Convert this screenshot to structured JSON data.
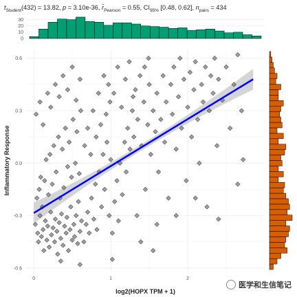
{
  "subtitle": {
    "t_symbol": "t",
    "t_sub": "Student",
    "t_df_value": "(432) = 13.82,",
    "p_symbol": "p",
    "p_value": " = 3.10e-36,",
    "r_symbol": "r̂",
    "r_sub": "Pearson",
    "r_value": " = 0.55, CI",
    "ci_sub": "95%",
    "ci_value": " [0.48, 0.62],",
    "n_symbol": "n",
    "n_sub": "pairs",
    "n_value": " = 434"
  },
  "watermark": {
    "text": "医学和生信笔记"
  },
  "chart_data": {
    "type": "scatter",
    "xlabel": "log2(HOPX TPM + 1)",
    "ylabel": "Inflammatory Response",
    "xlim": [
      -0.1,
      3.0
    ],
    "ylim": [
      -0.62,
      0.65
    ],
    "x_ticks": [
      0,
      1,
      2
    ],
    "x_tick_labels": [
      "0",
      "1",
      "2"
    ],
    "y_ticks": [
      -0.6,
      -0.3,
      0.0,
      0.3,
      0.6
    ],
    "y_tick_labels": [
      "-0.6",
      "-0.3",
      "0.0",
      "0.3",
      "0.6"
    ],
    "grid": true,
    "colors": {
      "points_fill": "#7f7f7f",
      "points_edge": "#000000",
      "fit_line": "#0000ff",
      "ci_band": "#bfbfbf",
      "top_hist": "#009e73",
      "right_hist": "#d55e00"
    },
    "regression": {
      "x": [
        0.0,
        2.85
      ],
      "y": [
        -0.285,
        0.48
      ],
      "ci_halfwidth_ends": 0.06,
      "ci_halfwidth_mid": 0.018
    },
    "top_hist": {
      "yticks": [
        0,
        10,
        20,
        30
      ],
      "ytick_labels": [
        "0",
        "10",
        "20",
        "30"
      ],
      "ylim": [
        0,
        35
      ],
      "counts": [
        3,
        15,
        26,
        31,
        30,
        34,
        27,
        26,
        21,
        25,
        25,
        23,
        20,
        19,
        18,
        16,
        17,
        13,
        14,
        15,
        12,
        9,
        10,
        6,
        4
      ]
    },
    "right_hist": {
      "counts": [
        3,
        6,
        9,
        14,
        12,
        13,
        15,
        16,
        13,
        18,
        14,
        16,
        15,
        13,
        11,
        12,
        7,
        11,
        7,
        10,
        9,
        12,
        13,
        7,
        11,
        6,
        10,
        9,
        8,
        9,
        11,
        7,
        7,
        9,
        5,
        6,
        4,
        3,
        2,
        1
      ]
    },
    "points": [
      [
        0.02,
        -0.35
      ],
      [
        0.05,
        -0.4
      ],
      [
        0.06,
        -0.45
      ],
      [
        0.08,
        -0.3
      ],
      [
        0.1,
        -0.42
      ],
      [
        0.12,
        -0.38
      ],
      [
        0.13,
        -0.5
      ],
      [
        0.15,
        -0.33
      ],
      [
        0.17,
        -0.44
      ],
      [
        0.18,
        -0.36
      ],
      [
        0.2,
        -0.48
      ],
      [
        0.22,
        -0.28
      ],
      [
        0.23,
        -0.41
      ],
      [
        0.25,
        -0.37
      ],
      [
        0.27,
        -0.45
      ],
      [
        0.28,
        -0.32
      ],
      [
        0.3,
        -0.39
      ],
      [
        0.31,
        -0.52
      ],
      [
        0.33,
        -0.34
      ],
      [
        0.35,
        -0.43
      ],
      [
        0.36,
        -0.29
      ],
      [
        0.38,
        -0.47
      ],
      [
        0.4,
        -0.36
      ],
      [
        0.42,
        -0.4
      ],
      [
        0.43,
        -0.31
      ],
      [
        0.45,
        -0.5
      ],
      [
        0.47,
        -0.38
      ],
      [
        0.48,
        -0.25
      ],
      [
        0.5,
        -0.44
      ],
      [
        0.52,
        -0.35
      ],
      [
        0.53,
        -0.42
      ],
      [
        0.55,
        -0.3
      ],
      [
        0.57,
        -0.46
      ],
      [
        0.58,
        -0.22
      ],
      [
        0.6,
        -0.39
      ],
      [
        0.62,
        -0.33
      ],
      [
        0.04,
        -0.2
      ],
      [
        0.07,
        -0.15
      ],
      [
        0.09,
        -0.08
      ],
      [
        0.11,
        -0.25
      ],
      [
        0.14,
        -0.1
      ],
      [
        0.16,
        0.02
      ],
      [
        0.19,
        -0.18
      ],
      [
        0.21,
        0.05
      ],
      [
        0.24,
        -0.12
      ],
      [
        0.26,
        0.1
      ],
      [
        0.29,
        -0.05
      ],
      [
        0.32,
        0.15
      ],
      [
        0.34,
        -0.2
      ],
      [
        0.37,
        0.08
      ],
      [
        0.39,
        -0.14
      ],
      [
        0.41,
        0.2
      ],
      [
        0.44,
        -0.02
      ],
      [
        0.46,
        0.12
      ],
      [
        0.49,
        -0.08
      ],
      [
        0.51,
        0.25
      ],
      [
        0.54,
        0.0
      ],
      [
        0.56,
        0.18
      ],
      [
        0.59,
        -0.06
      ],
      [
        0.61,
        0.3
      ],
      [
        0.03,
        0.28
      ],
      [
        0.08,
        0.35
      ],
      [
        0.12,
        0.22
      ],
      [
        0.18,
        0.4
      ],
      [
        0.22,
        0.32
      ],
      [
        0.28,
        0.45
      ],
      [
        0.33,
        0.38
      ],
      [
        0.38,
        0.5
      ],
      [
        0.44,
        0.42
      ],
      [
        0.5,
        0.55
      ],
      [
        0.55,
        0.36
      ],
      [
        0.6,
        0.48
      ],
      [
        0.65,
        -0.45
      ],
      [
        0.68,
        -0.35
      ],
      [
        0.7,
        -0.28
      ],
      [
        0.72,
        -0.4
      ],
      [
        0.75,
        -0.2
      ],
      [
        0.78,
        -0.32
      ],
      [
        0.8,
        -0.12
      ],
      [
        0.82,
        -0.38
      ],
      [
        0.85,
        -0.05
      ],
      [
        0.88,
        -0.25
      ],
      [
        0.9,
        0.05
      ],
      [
        0.92,
        -0.15
      ],
      [
        0.95,
        0.12
      ],
      [
        0.98,
        -0.3
      ],
      [
        1.0,
        0.02
      ],
      [
        0.66,
        0.1
      ],
      [
        0.7,
        0.2
      ],
      [
        0.74,
        0.05
      ],
      [
        0.77,
        0.3
      ],
      [
        0.81,
        0.15
      ],
      [
        0.84,
        0.4
      ],
      [
        0.87,
        0.22
      ],
      [
        0.91,
        0.5
      ],
      [
        0.94,
        0.28
      ],
      [
        0.97,
        0.45
      ],
      [
        0.99,
        0.35
      ],
      [
        1.02,
        -0.4
      ],
      [
        1.05,
        -0.22
      ],
      [
        1.08,
        -0.1
      ],
      [
        1.1,
        -0.33
      ],
      [
        1.12,
        0.0
      ],
      [
        1.15,
        -0.18
      ],
      [
        1.18,
        0.12
      ],
      [
        1.2,
        -0.05
      ],
      [
        1.22,
        0.2
      ],
      [
        1.25,
        0.08
      ],
      [
        1.28,
        0.3
      ],
      [
        1.3,
        0.15
      ],
      [
        1.32,
        0.42
      ],
      [
        1.35,
        0.25
      ],
      [
        1.38,
        0.5
      ],
      [
        1.4,
        0.1
      ],
      [
        1.43,
        0.35
      ],
      [
        1.45,
        -0.15
      ],
      [
        1.48,
        0.22
      ],
      [
        1.5,
        0.45
      ],
      [
        1.04,
        0.4
      ],
      [
        1.09,
        0.55
      ],
      [
        1.14,
        0.32
      ],
      [
        1.19,
        0.48
      ],
      [
        1.24,
        0.58
      ],
      [
        1.29,
        0.38
      ],
      [
        1.34,
        -0.3
      ],
      [
        1.39,
        -0.45
      ],
      [
        1.44,
        0.55
      ],
      [
        1.49,
        0.6
      ],
      [
        1.52,
        0.05
      ],
      [
        1.55,
        0.3
      ],
      [
        1.58,
        0.18
      ],
      [
        1.6,
        0.4
      ],
      [
        1.62,
        -0.05
      ],
      [
        1.65,
        0.25
      ],
      [
        1.68,
        0.5
      ],
      [
        1.7,
        0.12
      ],
      [
        1.72,
        0.35
      ],
      [
        1.75,
        -0.2
      ],
      [
        1.78,
        0.45
      ],
      [
        1.8,
        0.28
      ],
      [
        1.82,
        0.55
      ],
      [
        1.85,
        0.08
      ],
      [
        1.88,
        0.38
      ],
      [
        1.9,
        0.6
      ],
      [
        1.92,
        0.2
      ],
      [
        1.95,
        0.48
      ],
      [
        1.98,
        -0.1
      ],
      [
        2.0,
        0.32
      ],
      [
        2.03,
        0.52
      ],
      [
        2.05,
        0.15
      ],
      [
        2.08,
        0.42
      ],
      [
        2.1,
        0.58
      ],
      [
        2.13,
        0.25
      ],
      [
        2.15,
        0.0
      ],
      [
        2.18,
        0.45
      ],
      [
        2.2,
        0.35
      ],
      [
        2.23,
        0.55
      ],
      [
        2.25,
        -0.25
      ],
      [
        2.28,
        0.3
      ],
      [
        2.3,
        0.5
      ],
      [
        2.33,
        0.4
      ],
      [
        2.35,
        0.6
      ],
      [
        2.38,
        0.1
      ],
      [
        2.4,
        0.48
      ],
      [
        2.45,
        0.36
      ],
      [
        2.5,
        0.55
      ],
      [
        2.55,
        0.2
      ],
      [
        2.6,
        0.45
      ],
      [
        2.65,
        0.62
      ],
      [
        2.7,
        0.3
      ],
      [
        1.6,
        -0.35
      ],
      [
        1.85,
        -0.3
      ],
      [
        2.1,
        -0.2
      ],
      [
        2.4,
        -0.32
      ],
      [
        2.65,
        -0.12
      ],
      [
        1.55,
        -0.5
      ],
      [
        1.02,
        -0.55
      ],
      [
        0.6,
        -0.58
      ],
      [
        0.35,
        -0.56
      ],
      [
        2.72,
        0.02
      ]
    ]
  }
}
